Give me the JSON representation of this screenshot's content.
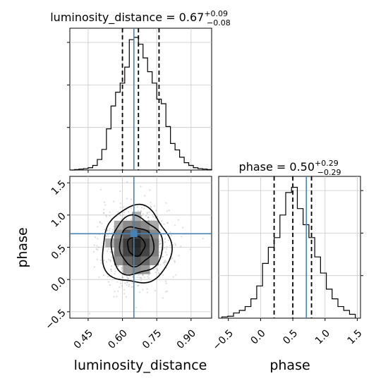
{
  "chart_data": [
    {
      "type": "histogram",
      "panel": "luminosity_distance-marginal",
      "title": {
        "prefix": "luminosity_distance = 0.67",
        "sup": "+0.09",
        "sub": "−0.08"
      },
      "x_range": [
        0.37,
        0.99
      ],
      "bin_edges": [
        0.37,
        0.39,
        0.41,
        0.43,
        0.45,
        0.47,
        0.49,
        0.51,
        0.53,
        0.55,
        0.57,
        0.59,
        0.61,
        0.63,
        0.65,
        0.67,
        0.69,
        0.71,
        0.73,
        0.75,
        0.77,
        0.79,
        0.81,
        0.83,
        0.85,
        0.87,
        0.89,
        0.91,
        0.93,
        0.95,
        0.97,
        0.99
      ],
      "counts": [
        0,
        1,
        2,
        3,
        5,
        10,
        23,
        45,
        90,
        140,
        170,
        190,
        225,
        285,
        290,
        275,
        245,
        215,
        190,
        155,
        145,
        95,
        58,
        44,
        28,
        16,
        10,
        5,
        3,
        2,
        1
      ],
      "quantile_lines": [
        0.6,
        0.67,
        0.76
      ],
      "truth": 0.65,
      "ylim": [
        0,
        310
      ],
      "grid": true
    },
    {
      "type": "contour-2d",
      "panel": "luminosity_distance-vs-phase",
      "xlabel": "luminosity_distance",
      "ylabel": "phase",
      "x_range": [
        0.37,
        0.99
      ],
      "y_range": [
        -0.6,
        1.6
      ],
      "x_ticks": [
        "0.45",
        "0.60",
        "0.75",
        "0.90"
      ],
      "x_tick_values": [
        0.45,
        0.6,
        0.75,
        0.9
      ],
      "y_ticks": [
        "−0.5",
        "0.0",
        "0.5",
        "1.0",
        "1.5"
      ],
      "y_tick_values": [
        -0.5,
        0.0,
        0.5,
        1.0,
        1.5
      ],
      "center": [
        0.66,
        0.52
      ],
      "sigma": [
        0.075,
        0.3
      ],
      "contour_levels_sigma": [
        0.5,
        1.0,
        1.5,
        2.0
      ],
      "truth": [
        0.65,
        0.71
      ],
      "grid": true
    },
    {
      "type": "histogram",
      "panel": "phase-marginal",
      "title": {
        "prefix": "phase = 0.50",
        "sup": "+0.29",
        "sub": "−0.29"
      },
      "xlabel": "phase",
      "x_range": [
        -0.65,
        1.55
      ],
      "x_ticks": [
        "−0.5",
        "0.0",
        "0.5",
        "1.0",
        "1.5"
      ],
      "x_tick_values": [
        -0.5,
        0.0,
        0.5,
        1.0,
        1.5
      ],
      "bin_edges": [
        -0.6,
        -0.51,
        -0.42,
        -0.33,
        -0.24,
        -0.15,
        -0.06,
        0.03,
        0.12,
        0.21,
        0.3,
        0.39,
        0.48,
        0.57,
        0.66,
        0.75,
        0.84,
        0.93,
        1.02,
        1.11,
        1.2,
        1.29,
        1.38,
        1.47
      ],
      "counts": [
        2,
        3,
        8,
        12,
        18,
        30,
        50,
        85,
        110,
        125,
        160,
        195,
        203,
        170,
        145,
        125,
        95,
        70,
        45,
        30,
        18,
        12,
        6
      ],
      "quantile_lines": [
        0.21,
        0.5,
        0.79
      ],
      "truth": 0.71,
      "ylim": [
        0,
        220
      ],
      "grid": true
    }
  ]
}
